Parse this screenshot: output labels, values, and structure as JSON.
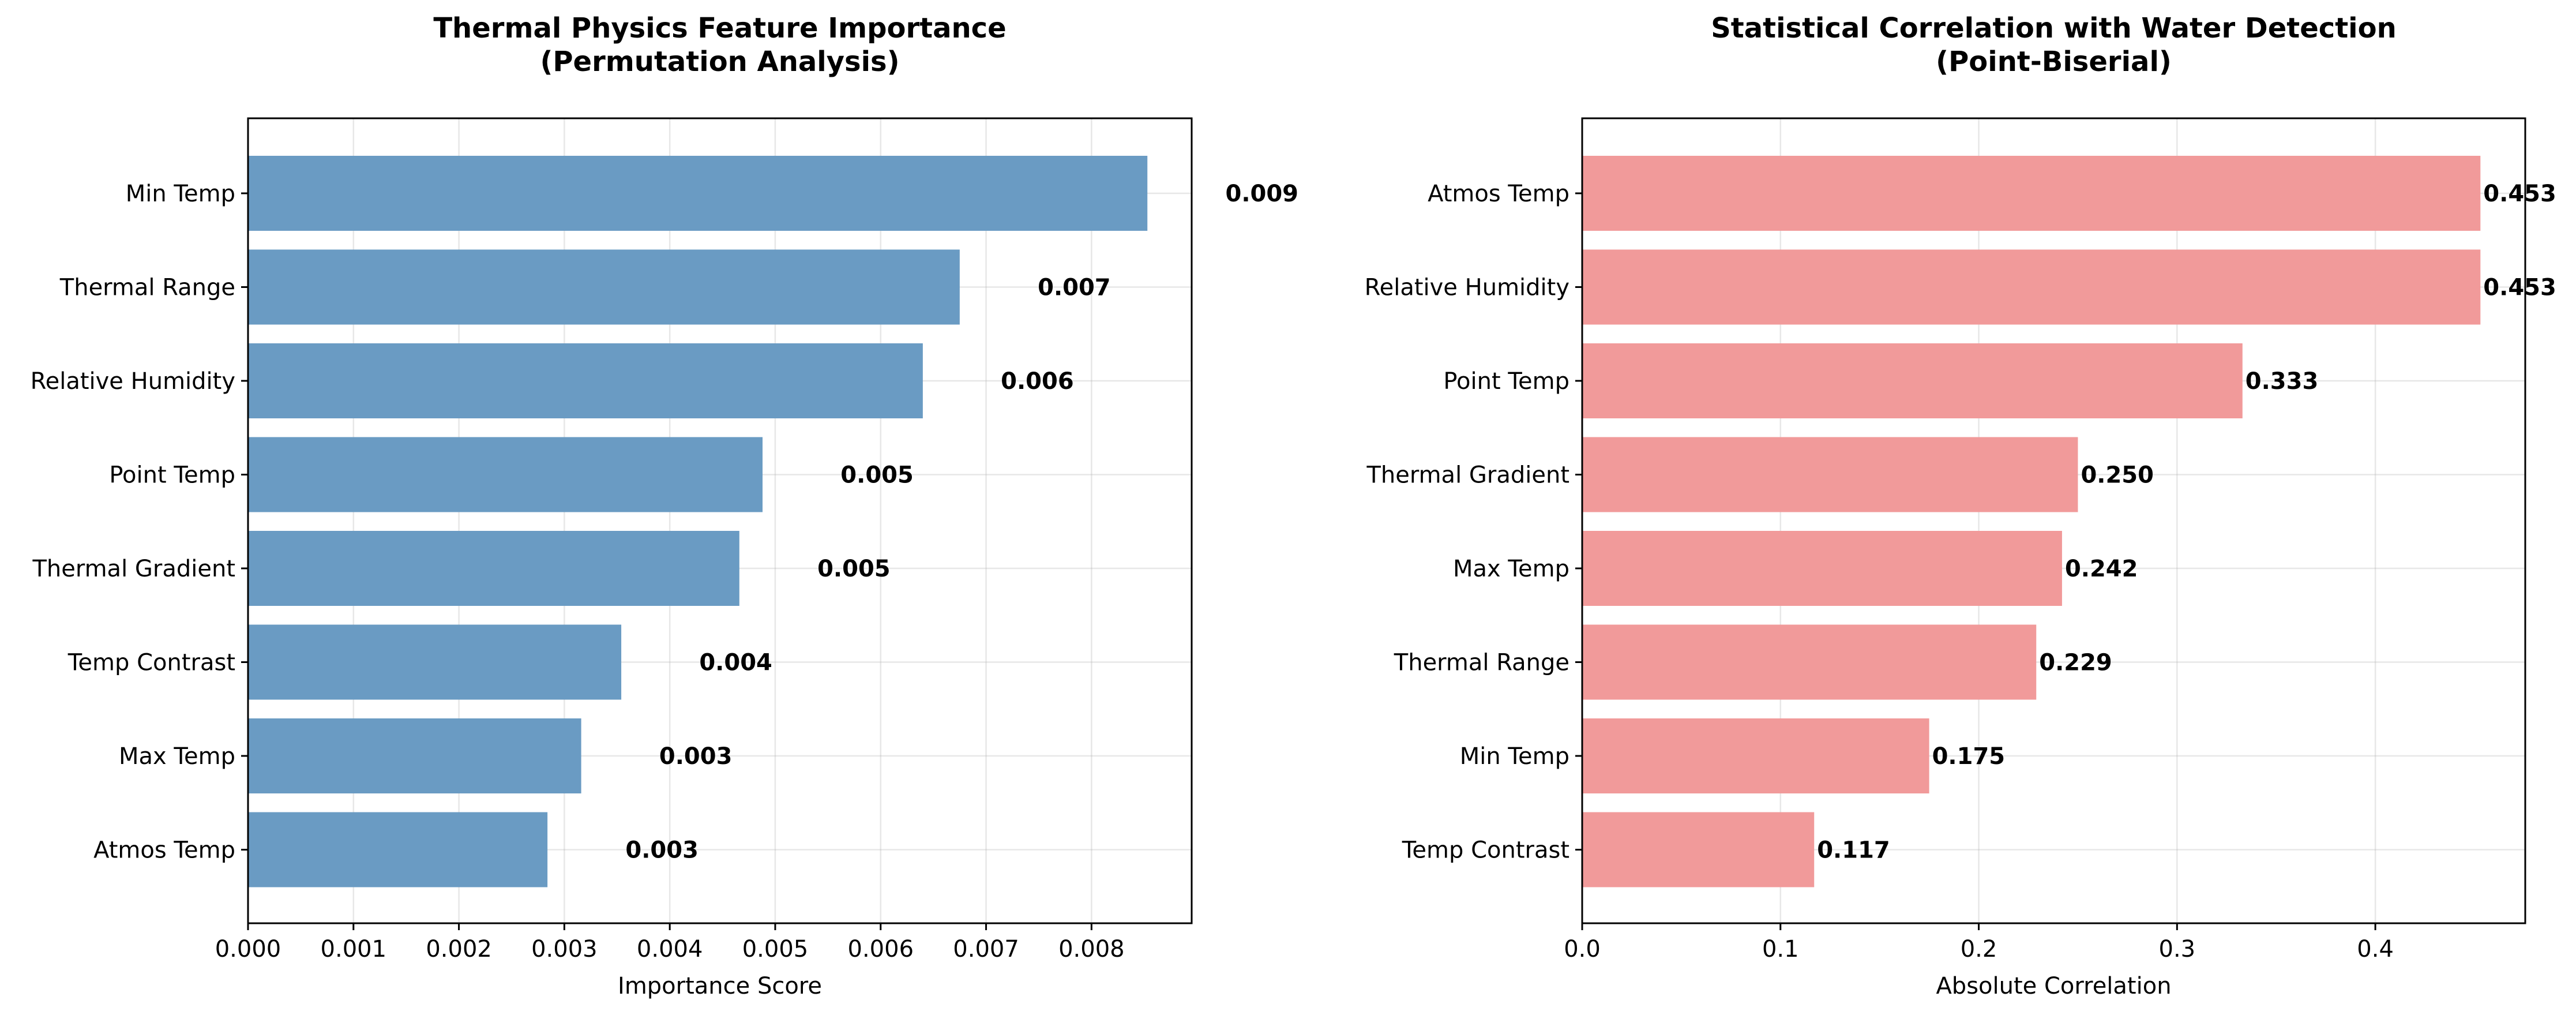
{
  "chart_data": [
    {
      "type": "bar",
      "orientation": "horizontal",
      "title": "Thermal Physics Feature Importance\n(Permutation Analysis)",
      "xlabel": "Importance Score",
      "ylabel": "",
      "categories": [
        "Min Temp",
        "Thermal Range",
        "Relative Humidity",
        "Point Temp",
        "Thermal Gradient",
        "Temp Contrast",
        "Max Temp",
        "Atmos Temp"
      ],
      "values": [
        0.00853,
        0.00675,
        0.0064,
        0.00488,
        0.00466,
        0.00354,
        0.00316,
        0.00284
      ],
      "value_labels": [
        "0.009",
        "0.007",
        "0.006",
        "0.005",
        "0.005",
        "0.004",
        "0.003",
        "0.003"
      ],
      "xlim": [
        0,
        0.00895
      ],
      "xticks": [
        "0.000",
        "0.001",
        "0.002",
        "0.003",
        "0.004",
        "0.005",
        "0.006",
        "0.007",
        "0.008"
      ],
      "xtick_values": [
        0,
        0.001,
        0.002,
        0.003,
        0.004,
        0.005,
        0.006,
        0.007,
        0.008
      ],
      "color": "#6a9bc3",
      "grid": true
    },
    {
      "type": "bar",
      "orientation": "horizontal",
      "title": "Statistical Correlation with Water Detection\n(Point-Biserial)",
      "xlabel": "Absolute Correlation",
      "ylabel": "",
      "categories": [
        "Atmos Temp",
        "Relative Humidity",
        "Point Temp",
        "Thermal Gradient",
        "Max Temp",
        "Thermal Range",
        "Min Temp",
        "Temp Contrast"
      ],
      "values": [
        0.453,
        0.453,
        0.333,
        0.25,
        0.242,
        0.229,
        0.175,
        0.117
      ],
      "value_labels": [
        "0.453",
        "0.453",
        "0.333",
        "0.250",
        "0.242",
        "0.229",
        "0.175",
        "0.117"
      ],
      "xlim": [
        0,
        0.4756
      ],
      "xticks": [
        "0.0",
        "0.1",
        "0.2",
        "0.3",
        "0.4"
      ],
      "xtick_values": [
        0,
        0.1,
        0.2,
        0.3,
        0.4
      ],
      "color": "#f19a9a",
      "grid": true
    }
  ]
}
